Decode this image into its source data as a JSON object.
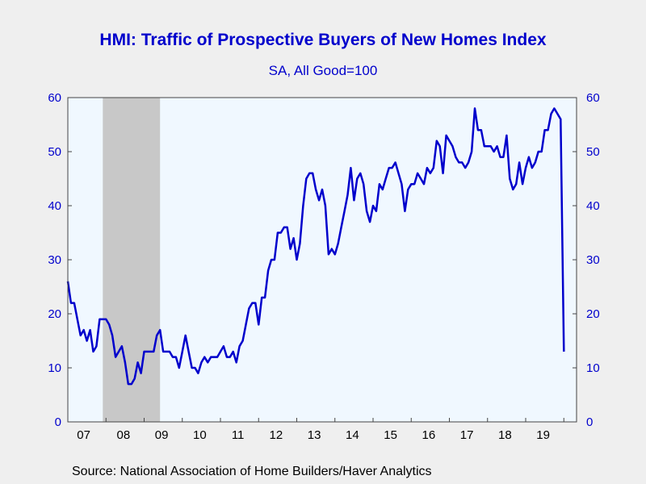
{
  "header": {
    "title": "HMI: Traffic of Prospective Buyers of New Homes Index",
    "subtitle": "SA, All Good=100"
  },
  "footer": {
    "source": "Source:  National Association of Home Builders/Haver Analytics"
  },
  "colors": {
    "series": "#0000cc",
    "plot_bg": "#f0f8ff",
    "recession": "#c8c8c8",
    "page_bg": "#efefef"
  },
  "chart_data": {
    "type": "line",
    "title": "HMI: Traffic of Prospective Buyers of New Homes Index",
    "subtitle": "SA, All Good=100",
    "y_left_ticks": [
      "0",
      "10",
      "20",
      "30",
      "40",
      "50",
      "60"
    ],
    "y_right_ticks": [
      "0",
      "10",
      "20",
      "30",
      "40",
      "50",
      "60"
    ],
    "x_ticks": [
      "07",
      "08",
      "09",
      "10",
      "11",
      "12",
      "13",
      "14",
      "15",
      "16",
      "17",
      "18",
      "19"
    ],
    "ylim": [
      0,
      60
    ],
    "x_range": [
      "2007-01",
      "2020-04"
    ],
    "grid": false,
    "recession_shading": [
      {
        "start": "2007-12",
        "end": "2009-06"
      }
    ],
    "series": [
      {
        "start": "2007-01",
        "frequency": "monthly",
        "values": [
          26,
          22,
          22,
          19,
          16,
          17,
          15,
          17,
          13,
          14,
          19,
          19,
          19,
          18,
          16,
          12,
          13,
          14,
          11,
          7,
          7,
          8,
          11,
          9,
          13,
          13,
          13,
          13,
          16,
          17,
          13,
          13,
          13,
          12,
          12,
          10,
          13,
          16,
          13,
          10,
          10,
          9,
          11,
          12,
          11,
          12,
          12,
          12,
          13,
          14,
          12,
          12,
          13,
          11,
          14,
          15,
          18,
          21,
          22,
          22,
          18,
          23,
          23,
          28,
          30,
          30,
          35,
          35,
          36,
          36,
          32,
          34,
          30,
          33,
          40,
          45,
          46,
          46,
          43,
          41,
          43,
          40,
          31,
          32,
          31,
          33,
          36,
          39,
          42,
          47,
          41,
          45,
          46,
          44,
          39,
          37,
          40,
          39,
          44,
          43,
          45,
          47,
          47,
          48,
          46,
          44,
          39,
          43,
          44,
          44,
          46,
          45,
          44,
          47,
          46,
          47,
          52,
          51,
          46,
          53,
          52,
          51,
          49,
          48,
          48,
          47,
          48,
          50,
          58,
          54,
          54,
          51,
          51,
          51,
          50,
          51,
          49,
          49,
          53,
          45,
          43,
          44,
          48,
          44,
          47,
          49,
          47,
          48,
          50,
          50,
          54,
          54,
          57,
          58,
          57,
          56,
          13
        ]
      }
    ]
  }
}
